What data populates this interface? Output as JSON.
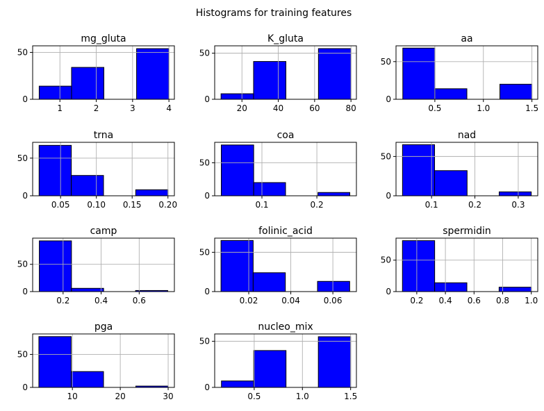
{
  "figure": {
    "suptitle": "Histograms for training features",
    "bar_color": "#0000ff",
    "edge_color": "#000000",
    "grid_color": "#b0b0b0"
  },
  "chart_data": [
    {
      "type": "bar",
      "title": "mg_gluta",
      "bins": 4,
      "xlim": [
        0.25,
        4.15
      ],
      "ylim": [
        0,
        57
      ],
      "x_ticks": [
        1,
        2,
        3,
        4
      ],
      "x_tick_labels": [
        "1",
        "2",
        "3",
        "4"
      ],
      "y_ticks": [
        0,
        50
      ],
      "y_tick_labels": [
        "0",
        "50"
      ],
      "bin_edges": [
        0.43,
        1.32,
        2.21,
        3.11,
        4.0
      ],
      "values": [
        14,
        34,
        0,
        54
      ],
      "grid": true
    },
    {
      "type": "bar",
      "title": "K_gluta",
      "bins": 4,
      "xlim": [
        5,
        83
      ],
      "ylim": [
        0,
        58
      ],
      "x_ticks": [
        20,
        40,
        60,
        80
      ],
      "x_tick_labels": [
        "20",
        "40",
        "60",
        "80"
      ],
      "y_ticks": [
        0,
        50
      ],
      "y_tick_labels": [
        "0",
        "50"
      ],
      "bin_edges": [
        8.5,
        26.4,
        44.2,
        62.1,
        80.0
      ],
      "values": [
        6,
        41,
        0,
        55
      ],
      "grid": true
    },
    {
      "type": "bar",
      "title": "aa",
      "bins": 4,
      "xlim": [
        0.1,
        1.56
      ],
      "ylim": [
        0,
        71
      ],
      "x_ticks": [
        0.5,
        1.0,
        1.5
      ],
      "x_tick_labels": [
        "0.5",
        "1.0",
        "1.5"
      ],
      "y_ticks": [
        0,
        50
      ],
      "y_tick_labels": [
        "0",
        "50"
      ],
      "bin_edges": [
        0.17,
        0.5,
        0.83,
        1.17,
        1.5
      ],
      "values": [
        68,
        14,
        0,
        20
      ],
      "grid": true
    },
    {
      "type": "bar",
      "title": "trna",
      "bins": 4,
      "xlim": [
        0.011,
        0.209
      ],
      "ylim": [
        0,
        71
      ],
      "x_ticks": [
        0.05,
        0.1,
        0.15,
        0.2
      ],
      "x_tick_labels": [
        "0.05",
        "0.10",
        "0.15",
        "0.20"
      ],
      "y_ticks": [
        0,
        50
      ],
      "y_tick_labels": [
        "0",
        "50"
      ],
      "bin_edges": [
        0.02,
        0.065,
        0.11,
        0.155,
        0.2
      ],
      "values": [
        67,
        27,
        0,
        8
      ],
      "grid": true
    },
    {
      "type": "bar",
      "title": "coa",
      "bins": 4,
      "xlim": [
        0.014,
        0.272
      ],
      "ylim": [
        0,
        81
      ],
      "x_ticks": [
        0.1,
        0.2
      ],
      "x_tick_labels": [
        "0.1",
        "0.2"
      ],
      "y_ticks": [
        0,
        50
      ],
      "y_tick_labels": [
        "0",
        "50"
      ],
      "bin_edges": [
        0.026,
        0.085,
        0.143,
        0.202,
        0.26
      ],
      "values": [
        77,
        20,
        0,
        5
      ],
      "grid": true
    },
    {
      "type": "bar",
      "title": "nad",
      "bins": 4,
      "xlim": [
        0.018,
        0.345
      ],
      "ylim": [
        0,
        68
      ],
      "x_ticks": [
        0.1,
        0.2,
        0.3
      ],
      "x_tick_labels": [
        "0.1",
        "0.2",
        "0.3"
      ],
      "y_ticks": [
        0,
        50
      ],
      "y_tick_labels": [
        "0",
        "50"
      ],
      "bin_edges": [
        0.033,
        0.107,
        0.182,
        0.256,
        0.33
      ],
      "values": [
        65,
        32,
        0,
        5
      ],
      "grid": true
    },
    {
      "type": "bar",
      "title": "camp",
      "bins": 4,
      "xlim": [
        0.04,
        0.785
      ],
      "ylim": [
        0,
        98
      ],
      "x_ticks": [
        0.2,
        0.4,
        0.6
      ],
      "x_tick_labels": [
        "0.2",
        "0.4",
        "0.6"
      ],
      "y_ticks": [
        0,
        50
      ],
      "y_tick_labels": [
        "0",
        "50"
      ],
      "bin_edges": [
        0.075,
        0.244,
        0.413,
        0.581,
        0.75
      ],
      "values": [
        93,
        6,
        0,
        2
      ],
      "grid": true
    },
    {
      "type": "bar",
      "title": "folinic_acid",
      "bins": 4,
      "xlim": [
        0.0038,
        0.0712
      ],
      "ylim": [
        0,
        68
      ],
      "x_ticks": [
        0.02,
        0.04,
        0.06
      ],
      "x_tick_labels": [
        "0.02",
        "0.04",
        "0.06"
      ],
      "y_ticks": [
        0,
        50
      ],
      "y_tick_labels": [
        "0",
        "50"
      ],
      "bin_edges": [
        0.0068,
        0.0221,
        0.0374,
        0.0527,
        0.068
      ],
      "values": [
        65,
        24,
        0,
        13
      ],
      "grid": true
    },
    {
      "type": "bar",
      "title": "spermidin",
      "bins": 4,
      "xlim": [
        0.055,
        1.045
      ],
      "ylim": [
        0,
        85
      ],
      "x_ticks": [
        0.2,
        0.4,
        0.6,
        0.8,
        1.0
      ],
      "x_tick_labels": [
        "0.2",
        "0.4",
        "0.6",
        "0.8",
        "1.0"
      ],
      "y_ticks": [
        0,
        50
      ],
      "y_tick_labels": [
        "0",
        "50"
      ],
      "bin_edges": [
        0.1,
        0.325,
        0.55,
        0.775,
        1.0
      ],
      "values": [
        81,
        14,
        0,
        7
      ],
      "grid": true
    },
    {
      "type": "bar",
      "title": "pga",
      "bins": 4,
      "xlim": [
        1.7,
        31.3
      ],
      "ylim": [
        0,
        81
      ],
      "x_ticks": [
        10,
        20,
        30
      ],
      "x_tick_labels": [
        "10",
        "20",
        "30"
      ],
      "y_ticks": [
        0,
        50
      ],
      "y_tick_labels": [
        "0",
        "50"
      ],
      "bin_edges": [
        3.0,
        9.75,
        16.5,
        23.25,
        30.0
      ],
      "values": [
        77,
        24,
        0,
        2
      ],
      "grid": true
    },
    {
      "type": "bar",
      "title": "nucleo_mix",
      "bins": 4,
      "xlim": [
        0.09,
        1.56
      ],
      "ylim": [
        0,
        58
      ],
      "x_ticks": [
        0.5,
        1.0,
        1.5
      ],
      "x_tick_labels": [
        "0.5",
        "1.0",
        "1.5"
      ],
      "y_ticks": [
        0,
        50
      ],
      "y_tick_labels": [
        "0",
        "50"
      ],
      "bin_edges": [
        0.16,
        0.495,
        0.83,
        1.165,
        1.5
      ],
      "values": [
        7,
        40,
        0,
        55
      ],
      "grid": true
    }
  ]
}
